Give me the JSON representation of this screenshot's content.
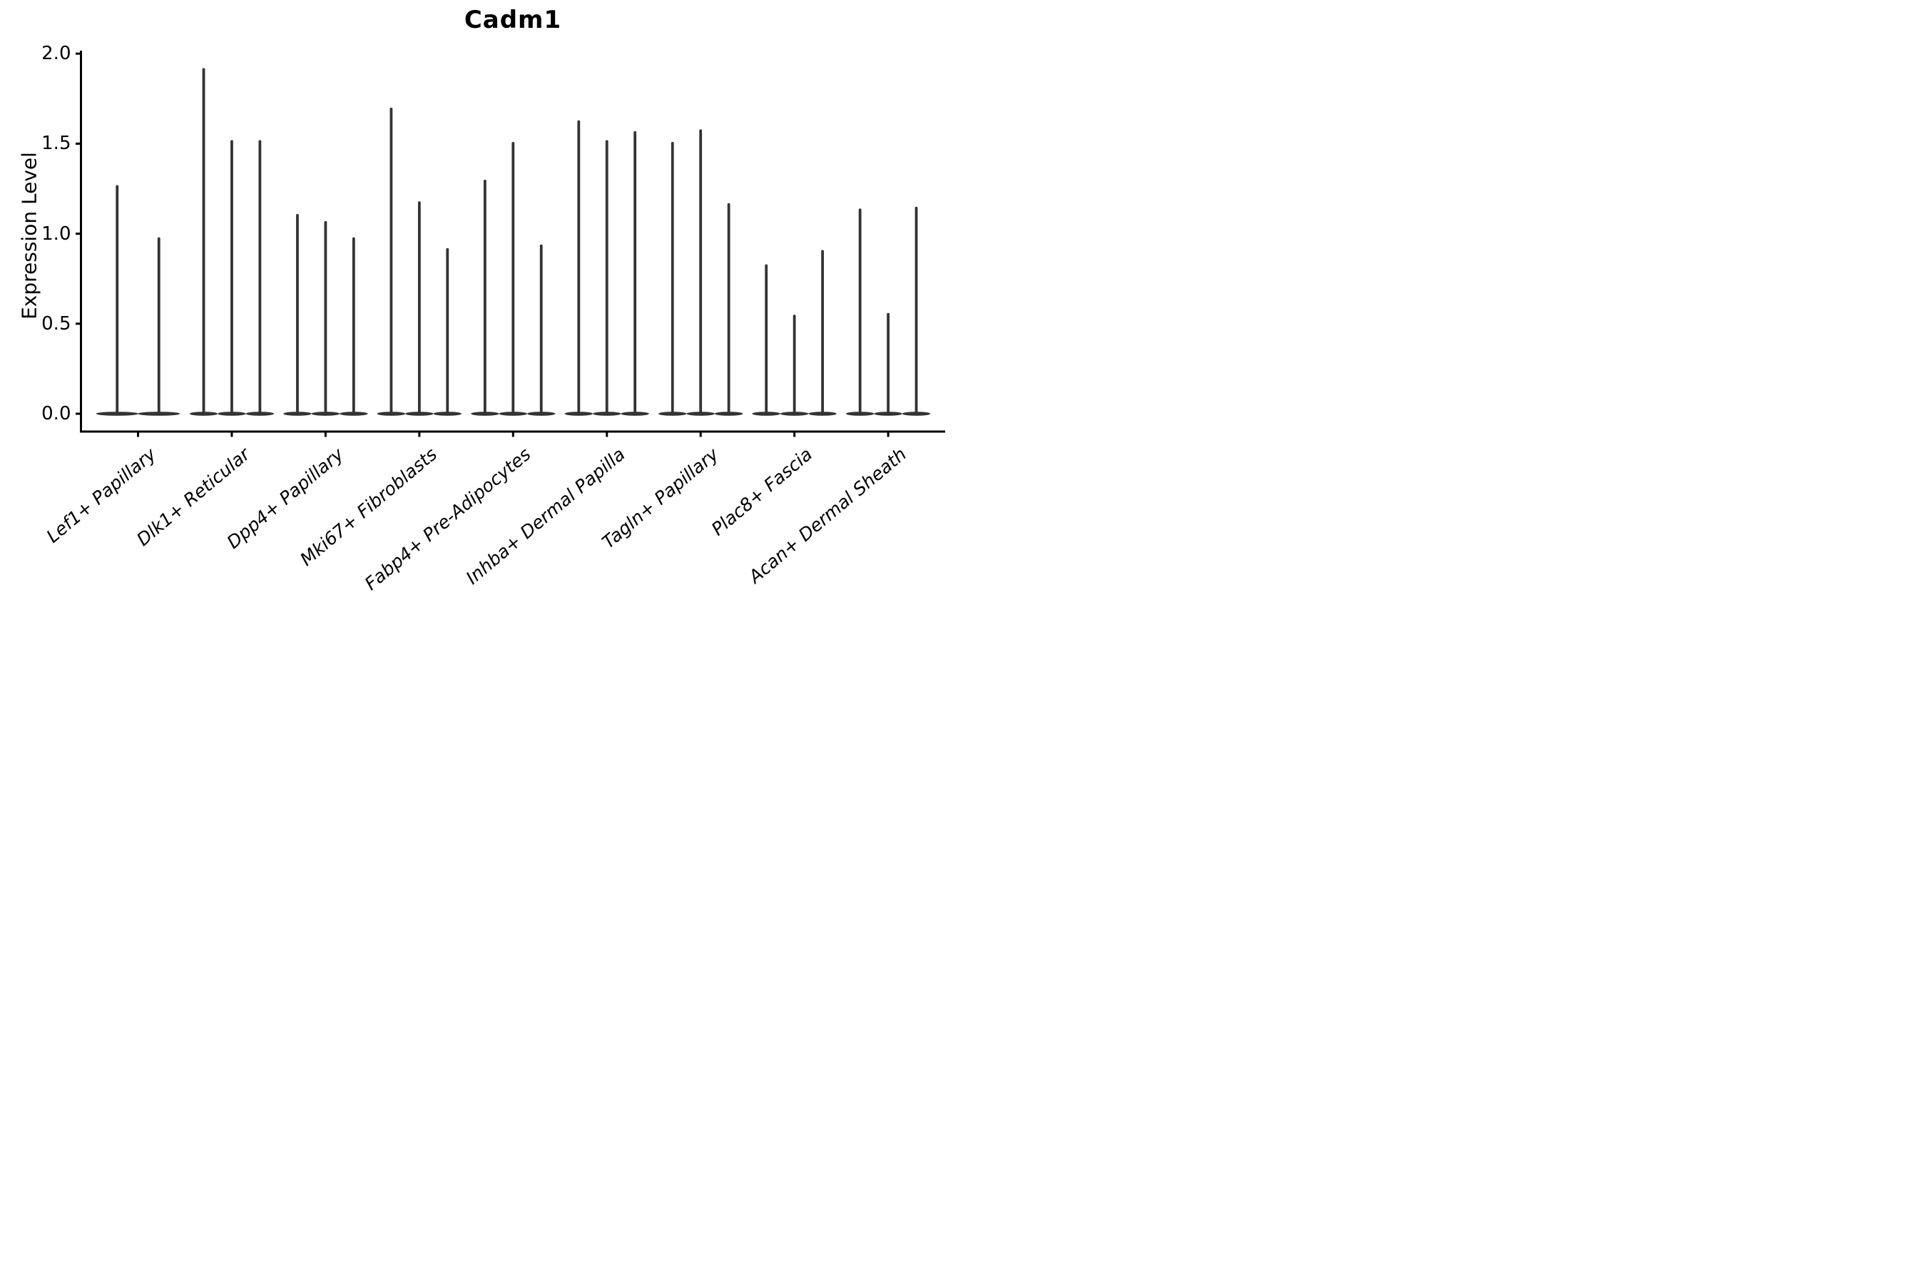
{
  "chart_data": {
    "type": "violin",
    "title": "Cadm1",
    "ylabel": "Expression Level",
    "xlabel": "",
    "yticks": {
      "labels": [
        "0.0",
        "0.5",
        "1.0",
        "1.5",
        "2.0"
      ],
      "values": [
        0,
        0.5,
        1.0,
        1.5,
        2.0
      ]
    },
    "ylim": [
      -0.1,
      2.03
    ],
    "baseline_value": 0,
    "legend": "none",
    "grid": "off",
    "categories": [
      "Lef1+ Papillary",
      "Dlk1+ Reticular",
      "Dpp4+ Papillary",
      "Mki67+ Fibroblasts",
      "Fabp4+ Pre-Adipocytes",
      "Inhba+ Dermal Papilla",
      "Tagln+ Papillary",
      "Plac8+ Fascia",
      "Acan+ Dermal Sheath"
    ],
    "groups": [
      {
        "label": "Lef1+ Papillary",
        "violins": [
          {
            "offset": -0.2225,
            "half_width": 0.225,
            "max": 1.27
          },
          {
            "offset": 0.2225,
            "half_width": 0.225,
            "max": 0.98
          }
        ]
      },
      {
        "label": "Dlk1+ Reticular",
        "violins": [
          {
            "offset": -0.3,
            "half_width": 0.15,
            "max": 1.92
          },
          {
            "offset": 0.0,
            "half_width": 0.15,
            "max": 1.52
          },
          {
            "offset": 0.3,
            "half_width": 0.15,
            "max": 1.52
          }
        ]
      },
      {
        "label": "Dpp4+ Papillary",
        "violins": [
          {
            "offset": -0.3,
            "half_width": 0.15,
            "max": 1.11
          },
          {
            "offset": 0.0,
            "half_width": 0.15,
            "max": 1.07
          },
          {
            "offset": 0.3,
            "half_width": 0.15,
            "max": 0.98
          }
        ]
      },
      {
        "label": "Mki67+ Fibroblasts",
        "violins": [
          {
            "offset": -0.3,
            "half_width": 0.15,
            "max": 1.7
          },
          {
            "offset": 0.0,
            "half_width": 0.15,
            "max": 1.18
          },
          {
            "offset": 0.3,
            "half_width": 0.15,
            "max": 0.92
          }
        ]
      },
      {
        "label": "Fabp4+ Pre-Adipocytes",
        "violins": [
          {
            "offset": -0.3,
            "half_width": 0.15,
            "max": 1.3
          },
          {
            "offset": 0.0,
            "half_width": 0.15,
            "max": 1.51
          },
          {
            "offset": 0.3,
            "half_width": 0.15,
            "max": 0.94
          }
        ]
      },
      {
        "label": "Inhba+ Dermal Papilla",
        "violins": [
          {
            "offset": -0.3,
            "half_width": 0.15,
            "max": 1.63
          },
          {
            "offset": 0.0,
            "half_width": 0.15,
            "max": 1.52
          },
          {
            "offset": 0.3,
            "half_width": 0.15,
            "max": 1.57
          }
        ]
      },
      {
        "label": "Tagln+ Papillary",
        "violins": [
          {
            "offset": -0.3,
            "half_width": 0.15,
            "max": 1.51
          },
          {
            "offset": 0.0,
            "half_width": 0.15,
            "max": 1.58
          },
          {
            "offset": 0.3,
            "half_width": 0.15,
            "max": 1.17
          }
        ]
      },
      {
        "label": "Plac8+ Fascia",
        "violins": [
          {
            "offset": -0.3,
            "half_width": 0.15,
            "max": 0.83
          },
          {
            "offset": 0.0,
            "half_width": 0.15,
            "max": 0.55
          },
          {
            "offset": 0.3,
            "half_width": 0.15,
            "max": 0.91
          }
        ]
      },
      {
        "label": "Acan+ Dermal Sheath",
        "violins": [
          {
            "offset": -0.3,
            "half_width": 0.15,
            "max": 1.14
          },
          {
            "offset": 0.0,
            "half_width": 0.15,
            "max": 0.56
          },
          {
            "offset": 0.3,
            "half_width": 0.15,
            "max": 1.15
          }
        ]
      }
    ],
    "colors": {
      "violin": "#333333",
      "axis": "#000000",
      "text": "#000000",
      "background": "#ffffff"
    }
  }
}
